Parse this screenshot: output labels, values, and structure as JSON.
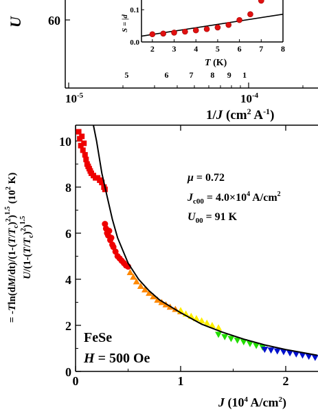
{
  "chart_data": [
    {
      "type": "scatter",
      "panel": "top-main",
      "xscale": "log",
      "xlabel": "1/J (cm² A⁻¹)",
      "xlabel_parts": {
        "a": "1/",
        "b": "J",
        "c": " (cm",
        "d": "2",
        "e": " A",
        "f": "-1",
        "g": ")"
      },
      "x_ticks": [
        {
          "value": 1e-05,
          "base": "10",
          "exp": "-5"
        },
        {
          "value": 0.0001,
          "base": "10",
          "exp": "-4"
        }
      ],
      "ylabel_fragment": "U",
      "y_ticks": [
        {
          "value": 60,
          "label": "60"
        }
      ],
      "secondary_axis": {
        "ticks": [
          {
            "label": "5",
            "inv_j": 2.1e-05
          },
          {
            "label": "6",
            "inv_j": 3.5e-05
          },
          {
            "label": "7",
            "inv_j": 4.8e-05
          },
          {
            "label": "8",
            "inv_j": 6.3e-05
          },
          {
            "label": "9",
            "inv_j": 7.8e-05
          },
          {
            "label": "1",
            "inv_j": 9.5e-05
          }
        ]
      }
    },
    {
      "type": "scatter",
      "panel": "top-inset",
      "xlabel": "T (K)",
      "ylabel_fragment": "S = |d",
      "xlim": [
        1.5,
        8
      ],
      "ylim": [
        0,
        0.16
      ],
      "x_ticks": [
        "2",
        "3",
        "4",
        "5",
        "6",
        "7",
        "8"
      ],
      "y_ticks": [
        {
          "value": 0.0,
          "label": "0.0"
        },
        {
          "value": 0.1,
          "label": "0.1"
        }
      ],
      "points": [
        {
          "x": 2.0,
          "y": 0.024
        },
        {
          "x": 2.5,
          "y": 0.026
        },
        {
          "x": 3.0,
          "y": 0.029
        },
        {
          "x": 3.5,
          "y": 0.032
        },
        {
          "x": 4.0,
          "y": 0.036
        },
        {
          "x": 4.5,
          "y": 0.04
        },
        {
          "x": 5.0,
          "y": 0.045
        },
        {
          "x": 5.5,
          "y": 0.053
        },
        {
          "x": 6.0,
          "y": 0.068
        },
        {
          "x": 6.5,
          "y": 0.086
        },
        {
          "x": 7.0,
          "y": 0.128
        }
      ],
      "fit_line": [
        {
          "x": 1.5,
          "y": 0.018
        },
        {
          "x": 8.0,
          "y": 0.086
        }
      ],
      "point_color": "#e01010"
    },
    {
      "type": "scatter",
      "panel": "bottom",
      "xlabel_parts": {
        "a": "J",
        "b": " (10",
        "c": "4",
        "d": " A/cm",
        "e": "2",
        "f": ")"
      },
      "ylabel_line1_parts": {
        "a": "U",
        "b": "/(1-(",
        "c": "T",
        "d": "/",
        "e": "T",
        "f": "c",
        "g": ")",
        "h": "2",
        "i": ")",
        "j": "1.5"
      },
      "ylabel_line2_parts": {
        "a": "= -",
        "b": "T",
        "c": "ln(d",
        "d": "M",
        "e": "/dt)/(1-(",
        "f": "T",
        "g": "/",
        "h": "T",
        "i": "c",
        "j": ")",
        "k": "2",
        "l": ")",
        "m": "1.5",
        "n": " (10",
        "o": "2",
        "p": " K)"
      },
      "xlim": [
        0,
        2.3
      ],
      "ylim": [
        0,
        11
      ],
      "x_ticks": [
        {
          "value": 0,
          "label": "0"
        },
        {
          "value": 1,
          "label": "1"
        },
        {
          "value": 2,
          "label": "2"
        }
      ],
      "y_ticks": [
        {
          "value": 0,
          "label": "0"
        },
        {
          "value": 2,
          "label": "2"
        },
        {
          "value": 4,
          "label": "4"
        },
        {
          "value": 6,
          "label": "6"
        },
        {
          "value": 8,
          "label": "8"
        },
        {
          "value": 10,
          "label": "10"
        }
      ],
      "annotations": {
        "mu_symbol": "μ",
        "mu_value": " = 0.72",
        "jc_symbol": "J",
        "jc_sub": "c00",
        "jc_value": " = 4.0×10",
        "jc_exp": "4",
        "jc_unit": " A/cm",
        "jc_unit_exp": "2",
        "u_symbol": "U",
        "u_sub": "00",
        "u_value": " = 91 K",
        "sample": "FeSe",
        "field_symbol": "H",
        "field_value": " = 500 Oe"
      },
      "series": [
        {
          "color": "#ee0000",
          "marker": "square",
          "points": [
            {
              "x": 0.03,
              "y": 10.4
            },
            {
              "x": 0.04,
              "y": 10.1
            },
            {
              "x": 0.05,
              "y": 9.8
            },
            {
              "x": 0.06,
              "y": 10.2
            },
            {
              "x": 0.07,
              "y": 9.6
            },
            {
              "x": 0.08,
              "y": 9.9
            },
            {
              "x": 0.09,
              "y": 9.4
            },
            {
              "x": 0.1,
              "y": 9.2
            },
            {
              "x": 0.11,
              "y": 9.0
            },
            {
              "x": 0.12,
              "y": 8.9
            },
            {
              "x": 0.13,
              "y": 8.8
            },
            {
              "x": 0.14,
              "y": 8.7
            },
            {
              "x": 0.15,
              "y": 8.6
            },
            {
              "x": 0.17,
              "y": 8.5
            },
            {
              "x": 0.19,
              "y": 8.4
            },
            {
              "x": 0.21,
              "y": 8.4
            },
            {
              "x": 0.23,
              "y": 8.3
            },
            {
              "x": 0.25,
              "y": 8.2
            },
            {
              "x": 0.27,
              "y": 8.0
            },
            {
              "x": 0.28,
              "y": 7.9
            }
          ]
        },
        {
          "color": "#ee0000",
          "marker": "circle",
          "points": [
            {
              "x": 0.28,
              "y": 6.4
            },
            {
              "x": 0.29,
              "y": 6.2
            },
            {
              "x": 0.3,
              "y": 6.0
            },
            {
              "x": 0.31,
              "y": 5.9
            },
            {
              "x": 0.32,
              "y": 6.1
            },
            {
              "x": 0.33,
              "y": 5.7
            },
            {
              "x": 0.34,
              "y": 5.8
            },
            {
              "x": 0.35,
              "y": 5.5
            },
            {
              "x": 0.36,
              "y": 5.4
            },
            {
              "x": 0.38,
              "y": 5.2
            },
            {
              "x": 0.4,
              "y": 5.0
            },
            {
              "x": 0.42,
              "y": 4.9
            },
            {
              "x": 0.44,
              "y": 4.8
            },
            {
              "x": 0.46,
              "y": 4.7
            },
            {
              "x": 0.48,
              "y": 4.6
            },
            {
              "x": 0.5,
              "y": 4.55
            }
          ]
        },
        {
          "color": "#ff8800",
          "marker": "triangle-up",
          "points": [
            {
              "x": 0.52,
              "y": 4.3
            },
            {
              "x": 0.55,
              "y": 4.1
            },
            {
              "x": 0.58,
              "y": 3.9
            },
            {
              "x": 0.62,
              "y": 3.7
            },
            {
              "x": 0.66,
              "y": 3.55
            },
            {
              "x": 0.7,
              "y": 3.4
            },
            {
              "x": 0.74,
              "y": 3.25
            },
            {
              "x": 0.78,
              "y": 3.1
            },
            {
              "x": 0.82,
              "y": 3.0
            },
            {
              "x": 0.86,
              "y": 2.9
            },
            {
              "x": 0.9,
              "y": 2.8
            },
            {
              "x": 0.95,
              "y": 2.7
            },
            {
              "x": 1.0,
              "y": 2.6
            }
          ]
        },
        {
          "color": "#ffee00",
          "marker": "triangle-up",
          "points": [
            {
              "x": 1.0,
              "y": 2.65
            },
            {
              "x": 1.05,
              "y": 2.5
            },
            {
              "x": 1.1,
              "y": 2.4
            },
            {
              "x": 1.15,
              "y": 2.3
            },
            {
              "x": 1.2,
              "y": 2.2
            },
            {
              "x": 1.25,
              "y": 2.1
            },
            {
              "x": 1.3,
              "y": 2.0
            },
            {
              "x": 1.36,
              "y": 1.9
            }
          ]
        },
        {
          "color": "#22dd00",
          "marker": "triangle-down",
          "points": [
            {
              "x": 1.36,
              "y": 1.6
            },
            {
              "x": 1.42,
              "y": 1.5
            },
            {
              "x": 1.48,
              "y": 1.42
            },
            {
              "x": 1.54,
              "y": 1.35
            },
            {
              "x": 1.6,
              "y": 1.28
            },
            {
              "x": 1.66,
              "y": 1.2
            },
            {
              "x": 1.72,
              "y": 1.12
            },
            {
              "x": 1.78,
              "y": 1.05
            }
          ]
        },
        {
          "color": "#0011cc",
          "marker": "triangle-down",
          "points": [
            {
              "x": 1.8,
              "y": 0.95
            },
            {
              "x": 1.86,
              "y": 0.92
            },
            {
              "x": 1.92,
              "y": 0.88
            },
            {
              "x": 1.98,
              "y": 0.85
            },
            {
              "x": 2.04,
              "y": 0.8
            },
            {
              "x": 2.1,
              "y": 0.75
            },
            {
              "x": 2.16,
              "y": 0.7
            },
            {
              "x": 2.22,
              "y": 0.65
            },
            {
              "x": 2.28,
              "y": 0.6
            }
          ]
        }
      ],
      "fit_curve": [
        {
          "x": 0.17,
          "y": 11.0
        },
        {
          "x": 0.2,
          "y": 10.0
        },
        {
          "x": 0.25,
          "y": 8.6
        },
        {
          "x": 0.3,
          "y": 7.6
        },
        {
          "x": 0.35,
          "y": 6.6
        },
        {
          "x": 0.4,
          "y": 5.8
        },
        {
          "x": 0.5,
          "y": 4.7
        },
        {
          "x": 0.6,
          "y": 4.0
        },
        {
          "x": 0.7,
          "y": 3.5
        },
        {
          "x": 0.8,
          "y": 3.1
        },
        {
          "x": 1.0,
          "y": 2.55
        },
        {
          "x": 1.2,
          "y": 2.05
        },
        {
          "x": 1.4,
          "y": 1.7
        },
        {
          "x": 1.6,
          "y": 1.4
        },
        {
          "x": 1.8,
          "y": 1.15
        },
        {
          "x": 2.0,
          "y": 0.95
        },
        {
          "x": 2.3,
          "y": 0.7
        }
      ],
      "fit_color": "#000000"
    }
  ]
}
